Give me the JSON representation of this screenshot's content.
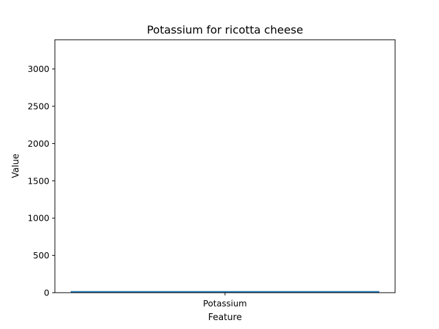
{
  "chart_data": {
    "type": "bar",
    "title": "Potassium for ricotta cheese",
    "xlabel": "Feature",
    "ylabel": "Value",
    "categories": [
      "Potassium"
    ],
    "values": [
      21
    ],
    "ylim": [
      0,
      3392
    ],
    "yticks": [
      0,
      500,
      1000,
      1500,
      2000,
      2500,
      3000
    ],
    "bar_color": "#1f77b4",
    "grid": false,
    "legend": false
  }
}
